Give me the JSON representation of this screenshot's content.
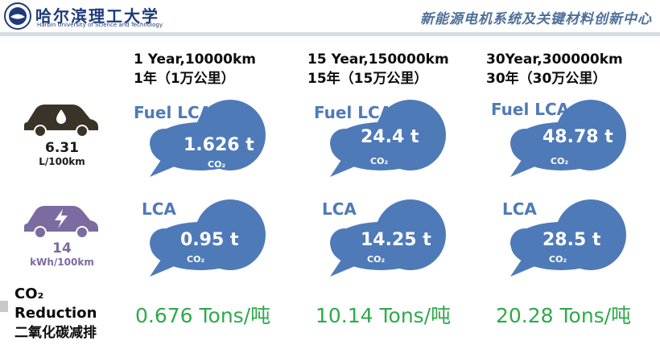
{
  "header": {
    "logo_cn": "哈尔滨理工大学",
    "logo_en": "Harbin University of Science and Technology",
    "center_name": "新能源电机系统及关键材料创新中心"
  },
  "columns": [
    {
      "line1": "1 Year,10000km",
      "line2": "1年（1万公里）"
    },
    {
      "line1": "15 Year,150000km",
      "line2": "15年（15万公里）"
    },
    {
      "line1": "30Year,300000km",
      "line2": "30年（30万公里）"
    }
  ],
  "fuel_car": {
    "value": "6.31",
    "unit": "L/100km",
    "icon": "fuel-car-icon",
    "color": "#3a3327"
  },
  "ev_car": {
    "value": "14",
    "unit": "kWh/100km",
    "icon": "electric-car-icon",
    "color": "#7b6ba0"
  },
  "fuel_clouds": [
    {
      "label": "Fuel LCA",
      "value": "1.626  t",
      "sub": "CO₂"
    },
    {
      "label": "Fuel LCA",
      "value": "24.4  t",
      "sub": "CO₂"
    },
    {
      "label": "Fuel LCA",
      "value": "48.78  t",
      "sub": "CO₂"
    }
  ],
  "ev_clouds": [
    {
      "label": "LCA",
      "value": "0.95  t",
      "sub": "CO₂"
    },
    {
      "label": "LCA",
      "value": "14.25  t",
      "sub": "CO₂"
    },
    {
      "label": "LCA",
      "value": "28.5  t",
      "sub": "CO₂"
    }
  ],
  "reduction": {
    "label_line1": "CO₂",
    "label_line2": "Reduction",
    "label_line3": "二氧化碳减排",
    "values": [
      "0.676 Tons/吨",
      "10.14 Tons/吨",
      "20.28 Tons/吨"
    ]
  },
  "colors": {
    "cloud": "#4e7ab8",
    "reduction": "#2eaa4a",
    "header_text": "#1d3b7a"
  }
}
